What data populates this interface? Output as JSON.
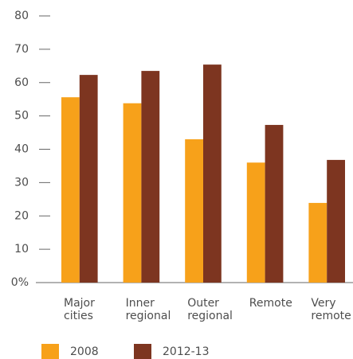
{
  "chart_data": {
    "type": "bar",
    "categories": [
      "Major cities",
      "Inner regional",
      "Outer regional",
      "Remote",
      "Very remote"
    ],
    "series": [
      {
        "name": "2008",
        "color": "#f7a11a",
        "values": [
          55.6,
          53.8,
          43,
          36,
          23.9
        ]
      },
      {
        "name": "2012-13",
        "color": "#7d3520",
        "values": [
          62.3,
          63.5,
          65.4,
          47.3,
          36.8
        ]
      }
    ],
    "ylim": [
      0,
      80
    ],
    "yticks": [
      {
        "value": 0,
        "label": "0%"
      },
      10,
      20,
      30,
      40,
      50,
      60,
      70,
      80
    ]
  }
}
